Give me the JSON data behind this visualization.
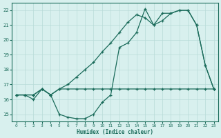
{
  "x_series1": [
    0,
    1,
    2,
    3,
    4,
    5,
    6,
    7,
    8,
    9,
    10,
    11,
    12,
    13,
    14,
    15,
    16,
    17,
    18,
    19,
    20,
    21,
    22,
    23
  ],
  "y_series1": [
    16.3,
    16.3,
    16.3,
    16.7,
    16.3,
    16.7,
    16.7,
    16.7,
    16.7,
    16.7,
    16.7,
    16.7,
    16.7,
    16.7,
    16.7,
    16.7,
    16.7,
    16.7,
    16.7,
    16.7,
    16.7,
    16.7,
    16.7,
    16.7
  ],
  "x_series2": [
    0,
    1,
    2,
    3,
    4,
    5,
    6,
    7,
    8,
    9,
    10,
    11,
    12,
    13,
    14,
    15,
    16,
    17,
    18,
    19,
    20,
    21,
    22,
    23
  ],
  "y_series2": [
    16.3,
    16.3,
    16.0,
    16.7,
    16.3,
    15.0,
    14.8,
    14.7,
    14.7,
    15.0,
    15.8,
    16.3,
    19.5,
    19.8,
    20.5,
    22.1,
    21.0,
    21.3,
    21.8,
    22.0,
    22.0,
    21.0,
    18.3,
    16.7
  ],
  "x_series3": [
    0,
    1,
    2,
    3,
    4,
    5,
    6,
    7,
    8,
    9,
    10,
    11,
    12,
    13,
    14,
    15,
    16,
    17,
    18,
    19,
    20,
    21,
    22,
    23
  ],
  "y_series3": [
    16.3,
    16.3,
    16.3,
    16.7,
    16.3,
    16.7,
    17.0,
    17.5,
    18.0,
    18.5,
    19.2,
    19.8,
    20.5,
    21.2,
    21.7,
    21.5,
    21.0,
    21.8,
    21.8,
    22.0,
    22.0,
    21.0,
    18.3,
    16.7
  ],
  "line_color": "#1a6b5a",
  "bg_color": "#d8f0ee",
  "grid_color": "#b8dbd8",
  "xlabel": "Humidex (Indice chaleur)",
  "xlim": [
    -0.5,
    23.5
  ],
  "ylim": [
    14.5,
    22.5
  ],
  "yticks": [
    15,
    16,
    17,
    18,
    19,
    20,
    21,
    22
  ],
  "xticks": [
    0,
    1,
    2,
    3,
    4,
    5,
    6,
    7,
    8,
    9,
    10,
    11,
    12,
    13,
    14,
    15,
    16,
    17,
    18,
    19,
    20,
    21,
    22,
    23
  ]
}
